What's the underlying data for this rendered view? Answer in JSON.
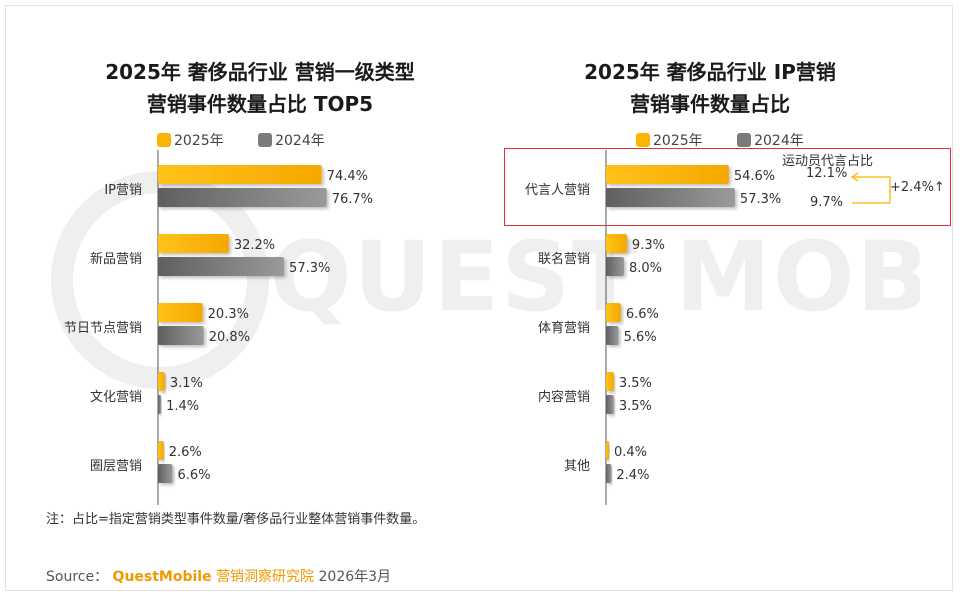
{
  "legend": {
    "y2025": "2025年",
    "y2024": "2024年"
  },
  "note": "注：占比=指定营销类型事件数量/奢侈品行业整体营销事件数量。",
  "source": {
    "label": "Source：",
    "brand": "QuestMobile",
    "org": "营销洞察研究院",
    "date": "2026年3月"
  },
  "watermark": "QUEST MOBILE",
  "colors": {
    "y2025": "#f9b500",
    "y2024": "#7b7b7b",
    "highlight": "#e0303a",
    "arrow": "#f9b500"
  },
  "annotation": {
    "label": "运动员代言占比",
    "v2025": "12.1%",
    "v2024": "9.7%",
    "delta": "+2.4%",
    "delta_icon": "up-arrow-icon"
  },
  "chart_data": [
    {
      "type": "bar",
      "orientation": "horizontal",
      "title": [
        "2025年 奢侈品行业 营销一级类型",
        "营销事件数量占比 TOP5"
      ],
      "categories": [
        "IP营销",
        "新品营销",
        "节日节点营销",
        "文化营销",
        "圈层营销"
      ],
      "series": [
        {
          "name": "2025年",
          "values": [
            74.4,
            32.2,
            20.3,
            3.1,
            2.6
          ]
        },
        {
          "name": "2024年",
          "values": [
            76.7,
            57.3,
            20.8,
            1.4,
            6.6
          ]
        }
      ],
      "labels_2025": [
        "74.4%",
        "32.2%",
        "20.3%",
        "3.1%",
        "2.6%"
      ],
      "labels_2024": [
        "76.7%",
        "57.3%",
        "20.8%",
        "1.4%",
        "6.6%"
      ],
      "legend_position": "top",
      "grid": false
    },
    {
      "type": "bar",
      "orientation": "horizontal",
      "title": [
        "2025年 奢侈品行业 IP营销",
        "营销事件数量占比"
      ],
      "categories": [
        "代言人营销",
        "联名营销",
        "体育营销",
        "内容营销",
        "其他"
      ],
      "series": [
        {
          "name": "2025年",
          "values": [
            54.6,
            9.3,
            6.6,
            3.5,
            0.4
          ]
        },
        {
          "name": "2024年",
          "values": [
            57.3,
            8.0,
            5.6,
            3.5,
            2.4
          ]
        }
      ],
      "labels_2025": [
        "54.6%",
        "9.3%",
        "6.6%",
        "3.5%",
        "0.4%"
      ],
      "labels_2024": [
        "57.3%",
        "8.0%",
        "5.6%",
        "3.5%",
        "2.4%"
      ],
      "legend_position": "top",
      "grid": false
    }
  ]
}
